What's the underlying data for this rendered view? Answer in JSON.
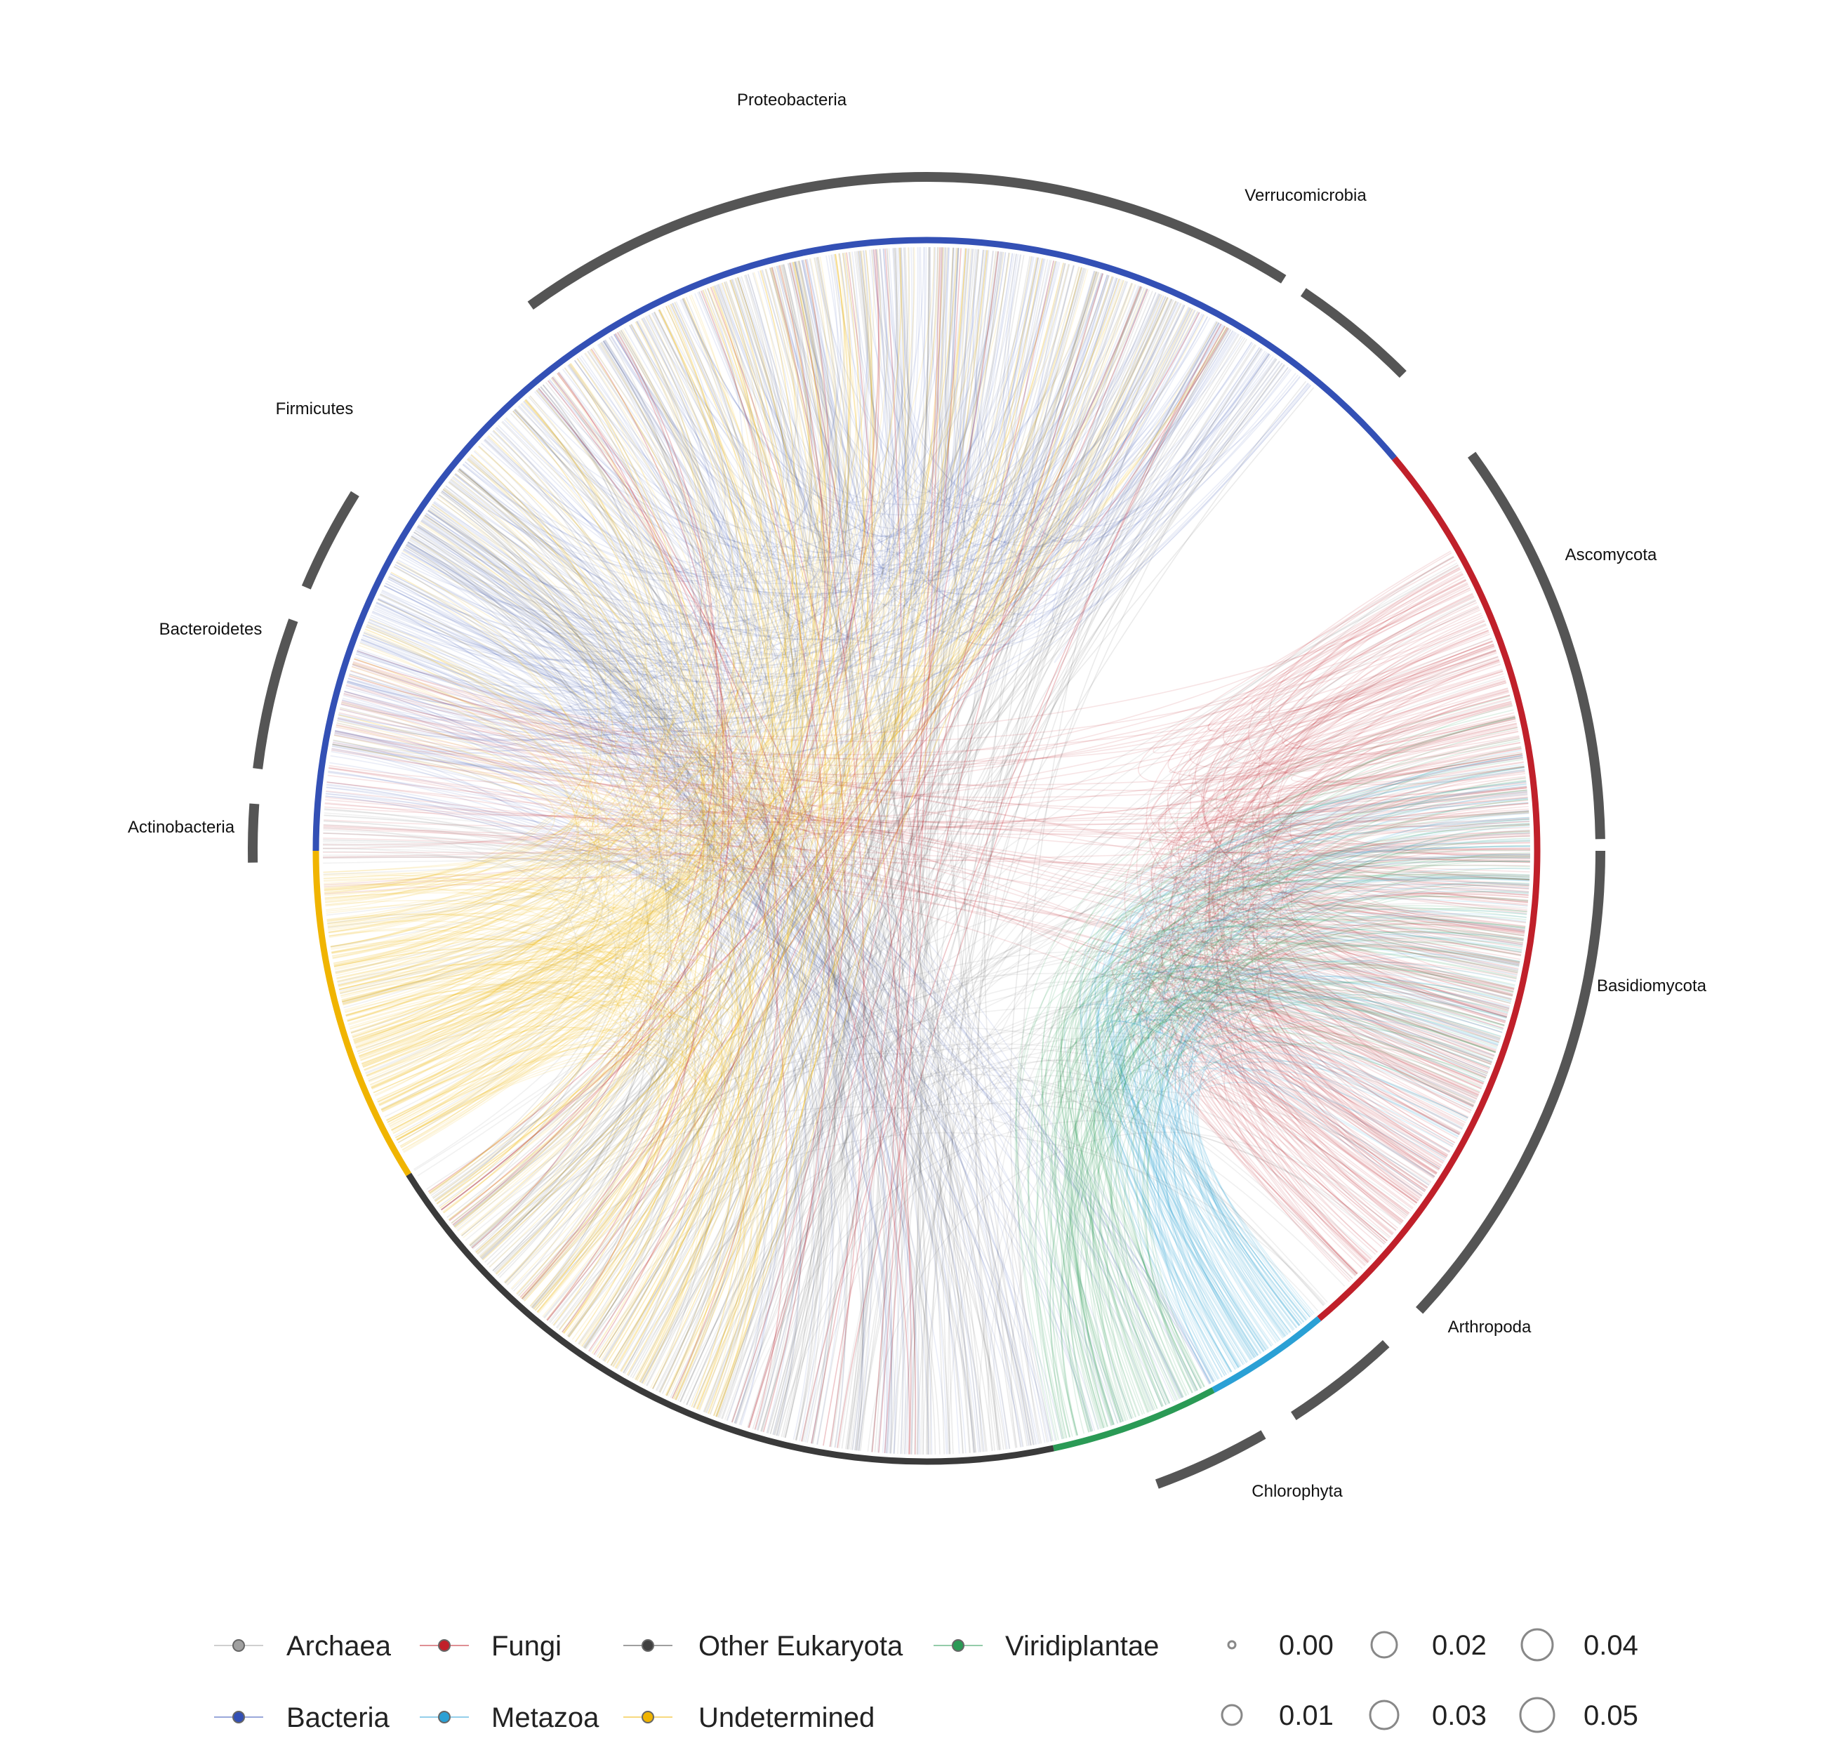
{
  "phylum_labels": [
    "Proteobacteria",
    "Verrucomicrobia",
    "Firmicutes",
    "Bacteroidetes",
    "Actinobacteria",
    "Ascomycota",
    "Basidiomycota",
    "Arthropoda",
    "Chlorophyta"
  ],
  "legend": {
    "groups": [
      {
        "label": "Archaea",
        "color": "#a0a0a0"
      },
      {
        "label": "Fungi",
        "color": "#c0202a"
      },
      {
        "label": "Other Eukaryota",
        "color": "#404040"
      },
      {
        "label": "Viridiplantae",
        "color": "#2a9a55"
      },
      {
        "label": "Bacteria",
        "color": "#3350b5"
      },
      {
        "label": "Metazoa",
        "color": "#2aa0d5"
      },
      {
        "label": "Undetermined",
        "color": "#f0b400"
      }
    ],
    "size_scale": [
      "0.00",
      "0.01",
      "0.02",
      "0.03",
      "0.04",
      "0.05"
    ]
  }
}
